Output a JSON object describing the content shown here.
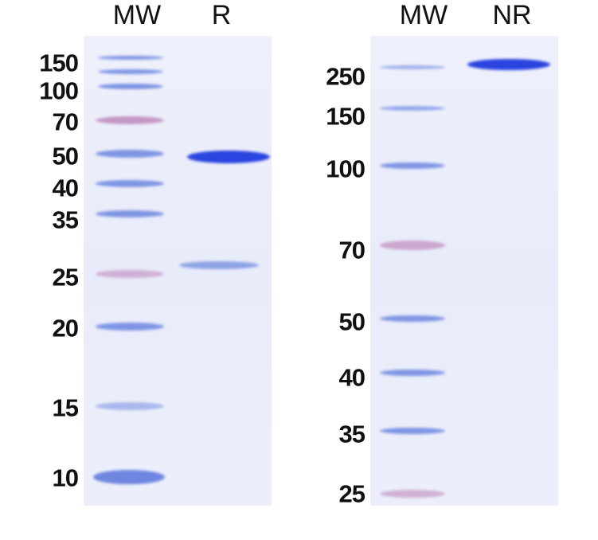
{
  "left_gel": {
    "lanes": [
      "MW",
      "R"
    ],
    "markers": [
      "150",
      "100",
      "70",
      "50",
      "40",
      "35",
      "25",
      "20",
      "15",
      "10"
    ]
  },
  "right_gel": {
    "lanes": [
      "MW",
      "NR"
    ],
    "markers": [
      "250",
      "150",
      "100",
      "70",
      "50",
      "40",
      "35",
      "25"
    ]
  },
  "colors": {
    "marker_band": "#7f95e4",
    "marker_pink": "#c497c6",
    "sample_band": "#2a44e0",
    "gel_bg": "#eceffb"
  }
}
